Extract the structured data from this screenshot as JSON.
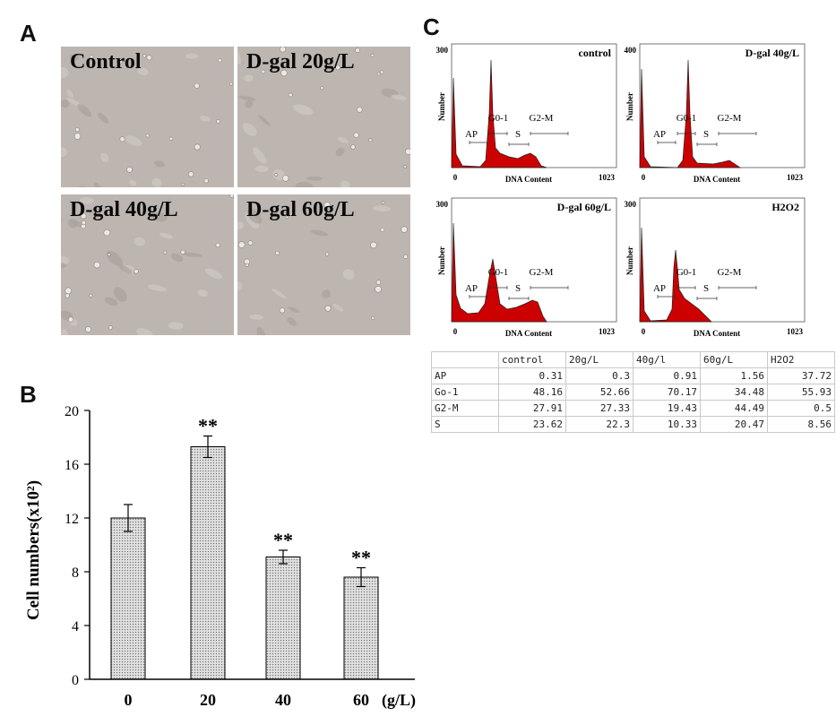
{
  "panel_a": {
    "letter": "A",
    "tiles": [
      {
        "label": "Control"
      },
      {
        "label": "D-gal 20g/L"
      },
      {
        "label": "D-gal 40g/L"
      },
      {
        "label": "D-gal 60g/L"
      }
    ]
  },
  "panel_b": {
    "letter": "B",
    "chart_data": {
      "type": "bar",
      "categories": [
        "0",
        "20",
        "40",
        "60"
      ],
      "values": [
        12.0,
        17.3,
        9.1,
        7.6
      ],
      "errors": [
        1.0,
        0.8,
        0.5,
        0.7
      ],
      "significance": [
        "",
        "**",
        "**",
        "**"
      ],
      "xlabel": "(g/L)",
      "ylabel": "Cell numbers(x10²)",
      "ylim": [
        0,
        20
      ],
      "yticks": [
        "0",
        "4",
        "8",
        "12",
        "16",
        "20"
      ],
      "bar_pattern": "dotted-grey"
    }
  },
  "panel_c": {
    "letter": "C",
    "hist_color": "#cc0000",
    "histograms": [
      {
        "title": "control",
        "ymax_label": "300",
        "y_label": "Number",
        "x_label": "DNA Content",
        "x0": "0",
        "x1": "1023",
        "gates": {
          "ap": "AP",
          "g01": "G0-1",
          "s": "S",
          "g2m": "G2-M"
        }
      },
      {
        "title": "D-gal 40g/L",
        "ymax_label": "400",
        "y_label": "Number",
        "x_label": "DNA Content",
        "x0": "0",
        "x1": "1023",
        "gates": {
          "ap": "AP",
          "g01": "G0-1",
          "s": "S",
          "g2m": "G2-M"
        }
      },
      {
        "title": "D-gal 60g/L",
        "ymax_label": "300",
        "y_label": "Number",
        "x_label": "DNA Content",
        "x0": "0",
        "x1": "1023",
        "gates": {
          "ap": "AP",
          "g01": "G0-1",
          "s": "S",
          "g2m": "G2-M"
        }
      },
      {
        "title": "H2O2",
        "ymax_label": "300",
        "y_label": "Number",
        "x_label": "DNA Content",
        "x0": "0",
        "x1": "1023",
        "gates": {
          "ap": "AP",
          "g01": "G0-1",
          "s": "S",
          "g2m": "G2-M"
        }
      }
    ],
    "table": {
      "columns": [
        "",
        "control",
        "20g/L",
        "40g/l",
        "60g/L",
        "H2O2"
      ],
      "rows": [
        [
          "AP",
          "0.31",
          "0.3",
          "0.91",
          "1.56",
          "37.72"
        ],
        [
          "Go-1",
          "48.16",
          "52.66",
          "70.17",
          "34.48",
          "55.93"
        ],
        [
          "G2-M",
          "27.91",
          "27.33",
          "19.43",
          "44.49",
          "0.5"
        ],
        [
          "S",
          "23.62",
          "22.3",
          "10.33",
          "20.47",
          "8.56"
        ]
      ]
    }
  }
}
